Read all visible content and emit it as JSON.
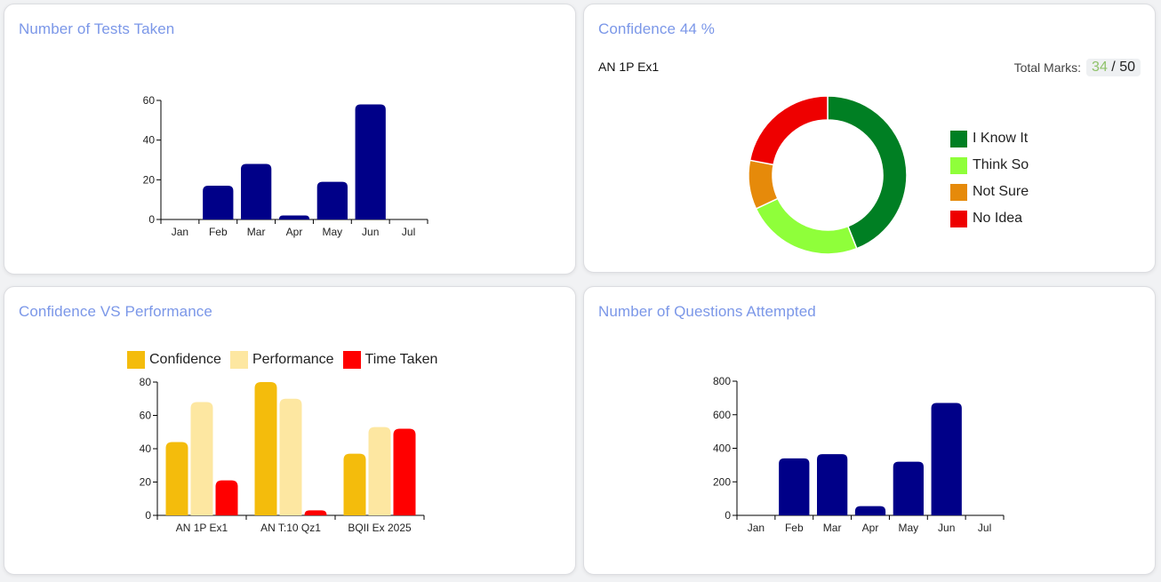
{
  "colors": {
    "title": "#7b97e8",
    "bar_navy": "#000088",
    "confidence": "#f4bc0c",
    "performance": "#fde7a1",
    "time_taken": "#ff0000",
    "know_it": "#007f23",
    "think_so": "#8fff3a",
    "not_sure": "#e68a0a",
    "no_idea": "#ee0000",
    "score_green": "#8fc26a"
  },
  "tests_card": {
    "title": "Number of Tests Taken"
  },
  "confidence_card": {
    "title": "Confidence 44 %",
    "test_name": "AN 1P Ex1",
    "total_marks_label": "Total Marks:",
    "score": "34",
    "separator": "/",
    "max_score": "50",
    "legend": [
      {
        "label": "I Know It",
        "color": "#007f23"
      },
      {
        "label": "Think So",
        "color": "#8fff3a"
      },
      {
        "label": "Not Sure",
        "color": "#e68a0a"
      },
      {
        "label": "No Idea",
        "color": "#ee0000"
      }
    ]
  },
  "cvp_card": {
    "title": "Confidence VS Performance",
    "legend": [
      {
        "label": "Confidence",
        "color": "#f4bc0c"
      },
      {
        "label": "Performance",
        "color": "#fde7a1"
      },
      {
        "label": "Time Taken",
        "color": "#ff0000"
      }
    ]
  },
  "questions_card": {
    "title": "Number of Questions Attempted"
  },
  "chart_data": [
    {
      "id": "tests",
      "type": "bar",
      "title": "Number of Tests Taken",
      "categories": [
        "Jan",
        "Feb",
        "Mar",
        "Apr",
        "May",
        "Jun",
        "Jul"
      ],
      "values": [
        0,
        17,
        28,
        2,
        19,
        58,
        0
      ],
      "yticks": [
        "0",
        "20",
        "40",
        "60"
      ],
      "ylim": [
        0,
        60
      ]
    },
    {
      "id": "confidence",
      "type": "pie",
      "title": "Confidence 44 %",
      "labels": [
        "I Know It",
        "Think So",
        "Not Sure",
        "No Idea"
      ],
      "values": [
        44,
        24,
        10,
        22
      ]
    },
    {
      "id": "cvp",
      "type": "bar",
      "title": "Confidence VS Performance",
      "categories": [
        "AN 1P Ex1",
        "AN T:10 Qz1",
        "BQII Ex 2025"
      ],
      "series": [
        {
          "name": "Confidence",
          "values": [
            44,
            80,
            37
          ]
        },
        {
          "name": "Performance",
          "values": [
            68,
            70,
            53
          ]
        },
        {
          "name": "Time Taken",
          "values": [
            21,
            3,
            52
          ]
        }
      ],
      "yticks": [
        "0",
        "20",
        "40",
        "60",
        "80"
      ],
      "ylim": [
        0,
        80
      ]
    },
    {
      "id": "questions",
      "type": "bar",
      "title": "Number of Questions Attempted",
      "categories": [
        "Jan",
        "Feb",
        "Mar",
        "Apr",
        "May",
        "Jun",
        "Jul"
      ],
      "values": [
        0,
        340,
        365,
        55,
        320,
        670,
        0
      ],
      "yticks": [
        "0",
        "200",
        "400",
        "600",
        "800"
      ],
      "ylim": [
        0,
        800
      ]
    }
  ]
}
